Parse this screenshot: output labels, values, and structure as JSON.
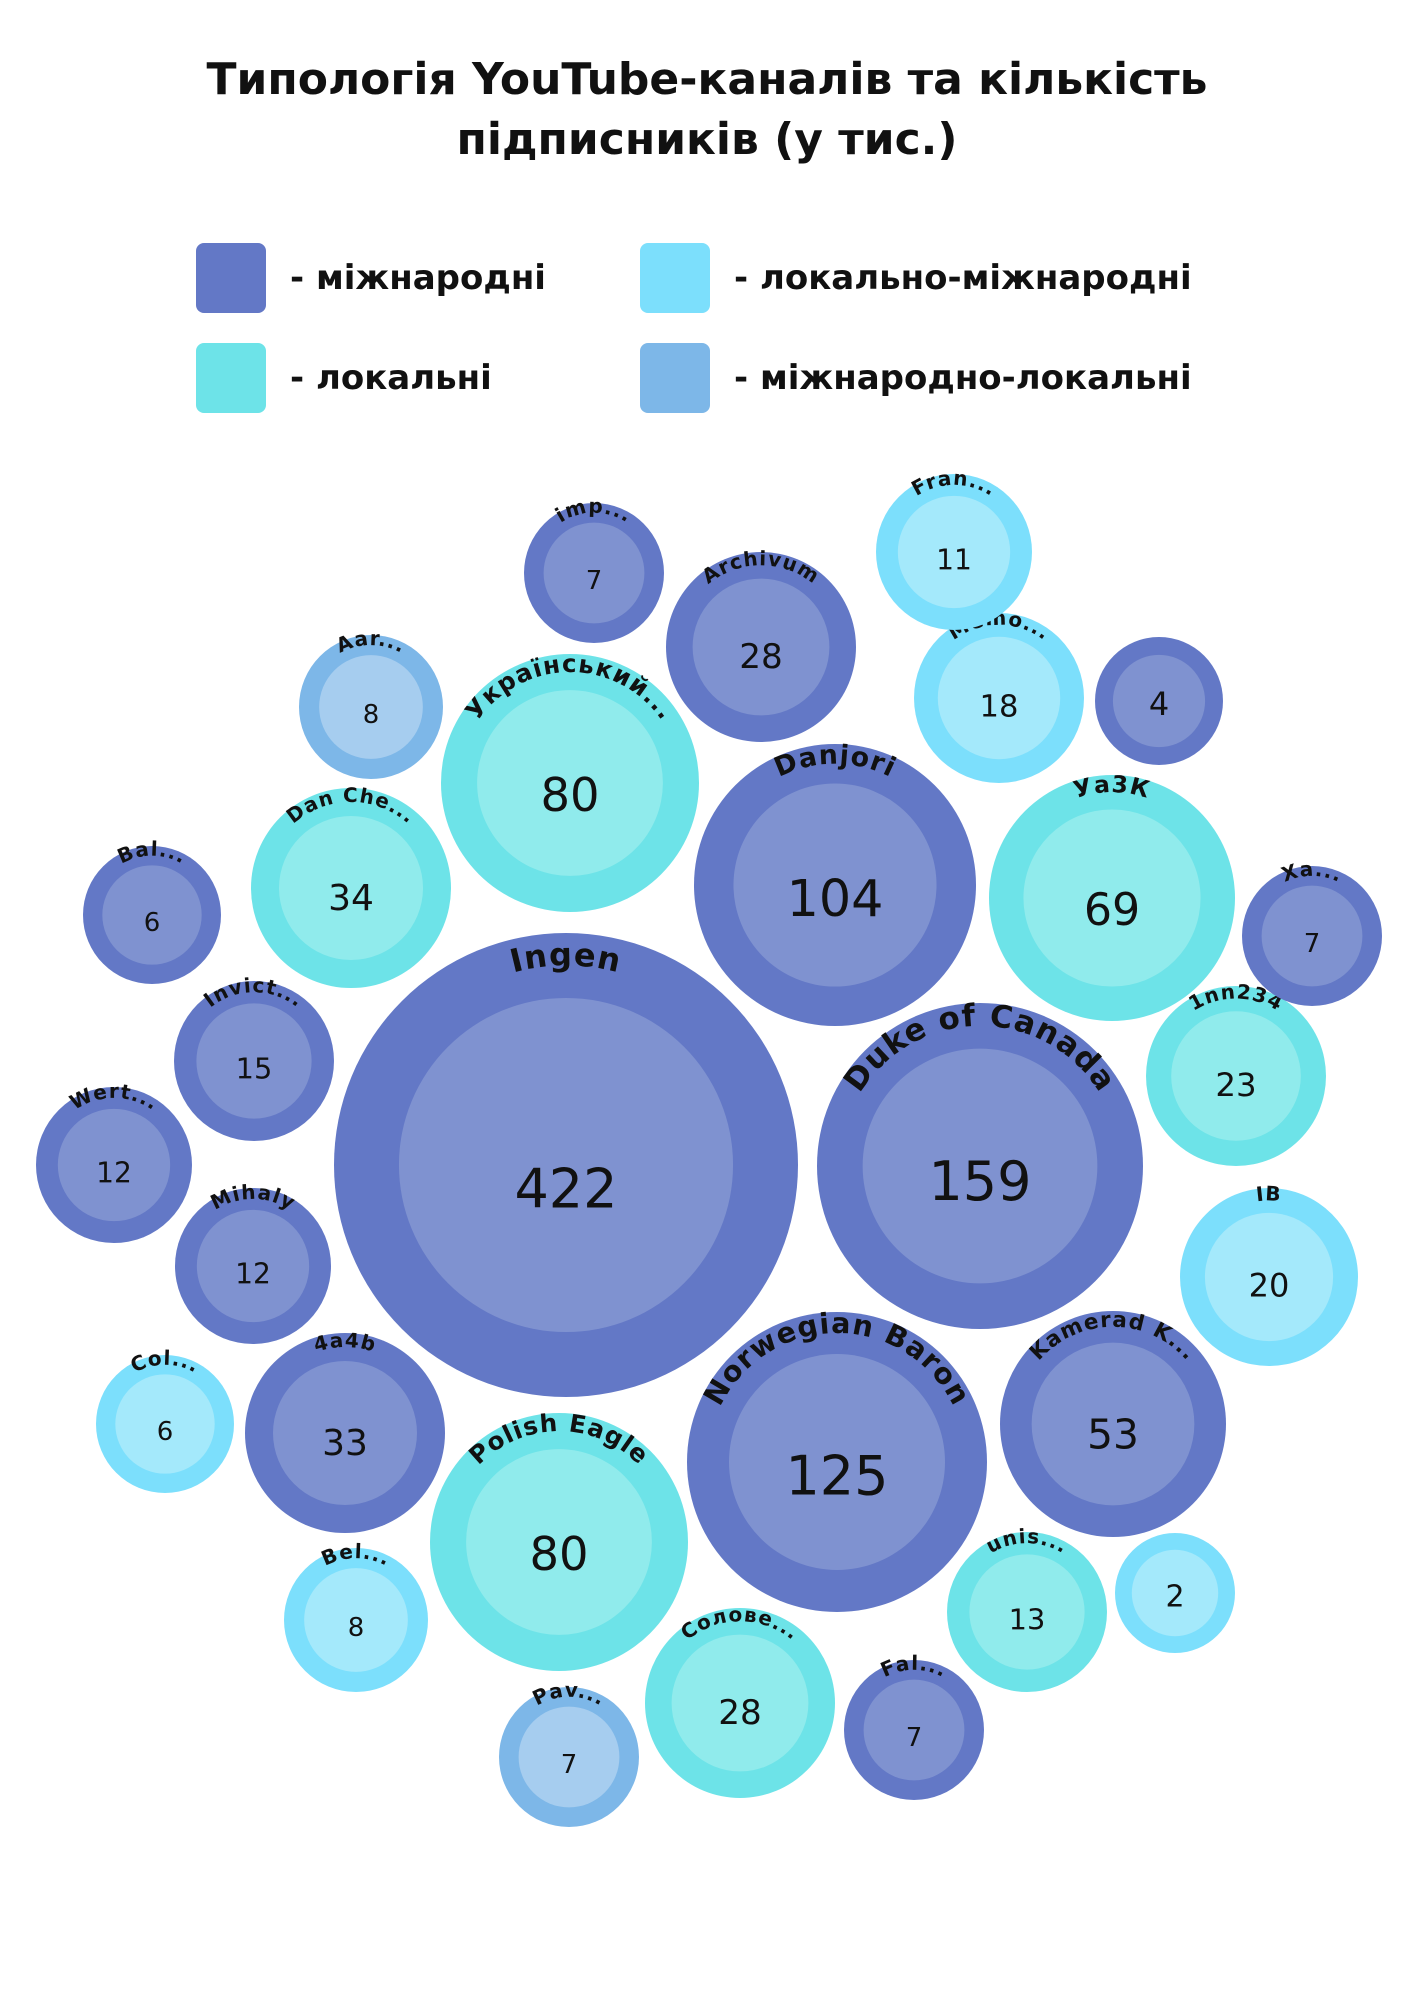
{
  "title": {
    "line1": "Типологія YouTube-каналів та кількість",
    "line2": "підписників (у тис.)"
  },
  "legend": [
    {
      "label": "- міжнародні",
      "color": "#6378c6"
    },
    {
      "label": "- локально-міжнародні",
      "color": "#7cdffc"
    },
    {
      "label": "- локальні",
      "color": "#6de3e8"
    },
    {
      "label": "- міжнародно-локальні",
      "color": "#7db7e8"
    }
  ],
  "chart_data": {
    "type": "bubble",
    "unit": "тис.",
    "categories": {
      "international": {
        "outer": "#6378c6",
        "inner": "#7f92d0"
      },
      "local_international": {
        "outer": "#7cdffc",
        "inner": "#a4e9fb"
      },
      "local": {
        "outer": "#6de3e8",
        "inner": "#90ebec"
      },
      "international_local": {
        "outer": "#7db7e8",
        "inner": "#a6cdef"
      }
    },
    "bubbles": [
      {
        "name": "Ingen",
        "value": 422,
        "category": "international"
      },
      {
        "name": "Duke of Canada",
        "value": 159,
        "category": "international"
      },
      {
        "name": "Norwegian Baron",
        "value": 125,
        "category": "international"
      },
      {
        "name": "Danjori",
        "value": 104,
        "category": "international"
      },
      {
        "name": "Український...",
        "value": 80,
        "category": "local"
      },
      {
        "name": "Polish Eagle",
        "value": 80,
        "category": "local"
      },
      {
        "name": "Уа3К",
        "value": 69,
        "category": "local"
      },
      {
        "name": "Kamerad K...",
        "value": 53,
        "category": "international"
      },
      {
        "name": "Dan Che...",
        "value": 34,
        "category": "local"
      },
      {
        "name": "4a4b",
        "value": 33,
        "category": "international"
      },
      {
        "name": "Archivum",
        "value": 28,
        "category": "international"
      },
      {
        "name": "Солове...",
        "value": 28,
        "category": "local"
      },
      {
        "name": "1nn234",
        "value": 23,
        "category": "local"
      },
      {
        "name": "ІВ",
        "value": 20,
        "category": "local_international"
      },
      {
        "name": "Memo...",
        "value": 18,
        "category": "local_international"
      },
      {
        "name": "Invict...",
        "value": 15,
        "category": "international"
      },
      {
        "name": "unis...",
        "value": 13,
        "category": "local"
      },
      {
        "name": "Wert...",
        "value": 12,
        "category": "international"
      },
      {
        "name": "Mihaly",
        "value": 12,
        "category": "international"
      },
      {
        "name": "Fran...",
        "value": 11,
        "category": "local_international"
      },
      {
        "name": "Aar...",
        "value": 8,
        "category": "international_local"
      },
      {
        "name": "Bel...",
        "value": 8,
        "category": "local_international"
      },
      {
        "name": "imp...",
        "value": 7,
        "category": "international"
      },
      {
        "name": "Xa...",
        "value": 7,
        "category": "international"
      },
      {
        "name": "Pav...",
        "value": 7,
        "category": "international_local"
      },
      {
        "name": "Fal...",
        "value": 7,
        "category": "international"
      },
      {
        "name": "Bal...",
        "value": 6,
        "category": "international"
      },
      {
        "name": "Col...",
        "value": 6,
        "category": "local_international"
      },
      {
        "name": "",
        "value": 4,
        "category": "international"
      },
      {
        "name": "",
        "value": 2,
        "category": "local_international"
      }
    ]
  }
}
